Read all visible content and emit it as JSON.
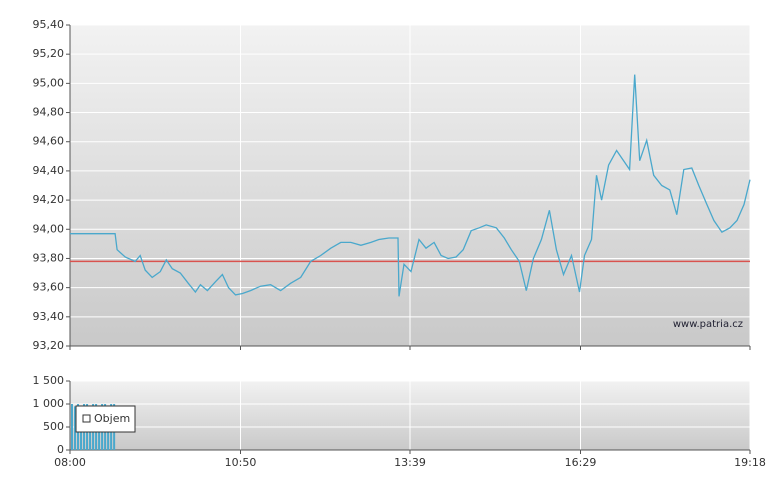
{
  "chart_data": [
    {
      "type": "line",
      "watermark": "www.patria.cz",
      "xlim": [
        "08:00",
        "19:18"
      ],
      "ylim": [
        93.2,
        95.4
      ],
      "yticks": [
        {
          "value": 93.2,
          "label": "93,20"
        },
        {
          "value": 93.4,
          "label": "93,40"
        },
        {
          "value": 93.6,
          "label": "93,60"
        },
        {
          "value": 93.8,
          "label": "93,80"
        },
        {
          "value": 94.0,
          "label": "94,00"
        },
        {
          "value": 94.2,
          "label": "94,20"
        },
        {
          "value": 94.4,
          "label": "94,40"
        },
        {
          "value": 94.6,
          "label": "94,60"
        },
        {
          "value": 94.8,
          "label": "94,80"
        },
        {
          "value": 95.0,
          "label": "95,00"
        },
        {
          "value": 95.2,
          "label": "95,20"
        },
        {
          "value": 95.4,
          "label": "95,40"
        }
      ],
      "grid": true,
      "color": "#4aa8cc",
      "reference_line": {
        "value": 93.78,
        "color": "#d9534f"
      },
      "x": [
        "08:00",
        "08:45",
        "08:47",
        "08:55",
        "09:05",
        "09:10",
        "09:15",
        "09:22",
        "09:30",
        "09:36",
        "09:42",
        "09:50",
        "09:58",
        "10:05",
        "10:10",
        "10:17",
        "10:25",
        "10:32",
        "10:38",
        "10:45",
        "10:52",
        "11:00",
        "11:10",
        "11:20",
        "11:30",
        "11:40",
        "11:50",
        "12:00",
        "12:10",
        "12:20",
        "12:30",
        "12:40",
        "12:50",
        "13:00",
        "13:08",
        "13:18",
        "13:27",
        "13:28",
        "13:33",
        "13:40",
        "13:48",
        "13:55",
        "14:03",
        "14:10",
        "14:17",
        "14:25",
        "14:32",
        "14:40",
        "14:48",
        "14:55",
        "15:05",
        "15:13",
        "15:20",
        "15:28",
        "15:35",
        "15:42",
        "15:50",
        "15:58",
        "16:05",
        "16:12",
        "16:20",
        "16:28",
        "16:33",
        "16:40",
        "16:45",
        "16:50",
        "16:57",
        "17:05",
        "17:12",
        "17:18",
        "17:23",
        "17:28",
        "17:35",
        "17:42",
        "17:50",
        "17:58",
        "18:05",
        "18:12",
        "18:20",
        "18:27",
        "18:35",
        "18:42",
        "18:50",
        "18:58",
        "19:05",
        "19:12",
        "19:18"
      ],
      "values": [
        93.97,
        93.97,
        93.86,
        93.81,
        93.78,
        93.82,
        93.72,
        93.67,
        93.71,
        93.79,
        93.73,
        93.7,
        93.63,
        93.57,
        93.62,
        93.58,
        93.64,
        93.69,
        93.6,
        93.55,
        93.56,
        93.58,
        93.61,
        93.62,
        93.58,
        93.63,
        93.67,
        93.78,
        93.82,
        93.87,
        93.91,
        93.91,
        93.89,
        93.91,
        93.93,
        93.94,
        93.94,
        93.54,
        93.76,
        93.71,
        93.93,
        93.87,
        93.91,
        93.82,
        93.8,
        93.81,
        93.86,
        93.99,
        94.01,
        94.03,
        94.01,
        93.94,
        93.86,
        93.78,
        93.58,
        93.8,
        93.93,
        94.13,
        93.86,
        93.69,
        93.82,
        93.57,
        93.82,
        93.93,
        94.37,
        94.2,
        94.44,
        94.54,
        94.47,
        94.41,
        95.06,
        94.47,
        94.61,
        94.37,
        94.3,
        94.27,
        94.1,
        94.41,
        94.42,
        94.3,
        94.17,
        94.06,
        93.98,
        94.01,
        94.06,
        94.17,
        94.34
      ]
    },
    {
      "type": "bar",
      "xlim": [
        "08:00",
        "19:18"
      ],
      "ylim": [
        0,
        1500
      ],
      "yticks": [
        0,
        500,
        {
          "value": 1000,
          "label": "1 000"
        },
        {
          "value": 1500,
          "label": "1 500"
        }
      ],
      "xticks": [
        "08:00",
        "10:50",
        "13:39",
        "16:29",
        "19:18"
      ],
      "grid": true,
      "legend": "top-left",
      "x": [
        "08:02",
        "08:05",
        "08:08",
        "08:11",
        "08:14",
        "08:17",
        "08:20",
        "08:23",
        "08:26",
        "08:29",
        "08:32",
        "08:35",
        "08:38",
        "08:41",
        "08:44"
      ],
      "series": [
        {
          "name": "Objem",
          "color": "#4aa8cc",
          "values": [
            1000,
            950,
            1000,
            800,
            1000,
            1000,
            900,
            1000,
            1000,
            950,
            1000,
            1000,
            850,
            1000,
            1000
          ]
        }
      ]
    }
  ]
}
